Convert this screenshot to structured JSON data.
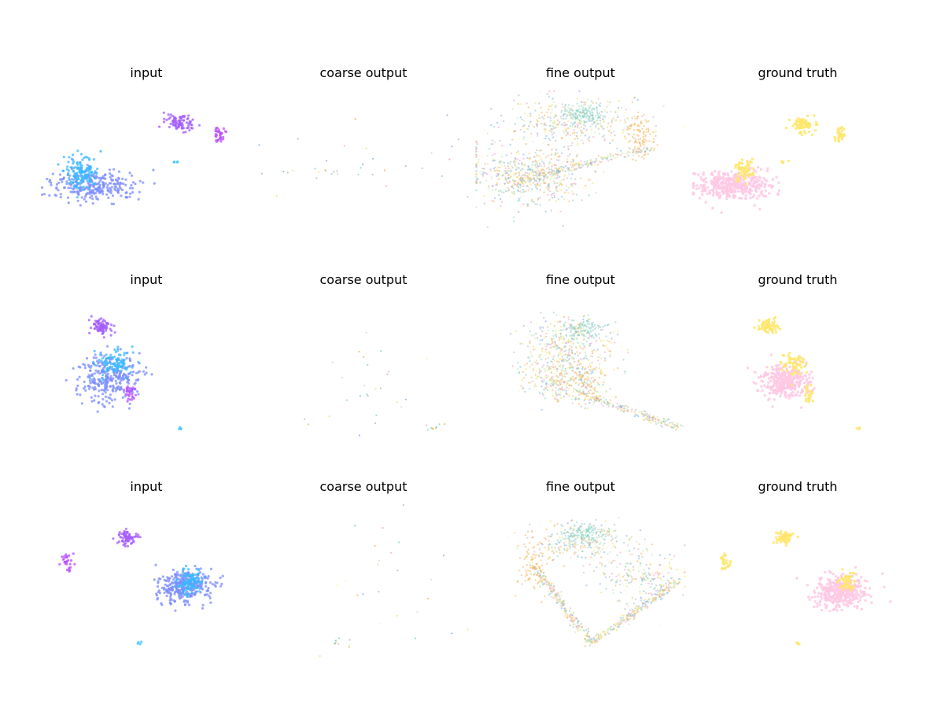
{
  "palette": {
    "input": [
      "#3bb8ff",
      "#7b8cff",
      "#a35cff",
      "#b84dff",
      "#35c6ff"
    ],
    "ground_truth": [
      "#ffc8e4",
      "#ffe66d"
    ],
    "output": [
      "#8ad4c4",
      "#c6e6b8",
      "#f4b65a",
      "#f7e06a",
      "#b9b9b9",
      "#f6f6b6",
      "#7fb2e4",
      "#f5a6c8"
    ]
  },
  "chart_data": [
    {
      "type": "scatter",
      "title": "input",
      "row": 1,
      "clusters": [
        {
          "name": "body",
          "kind": "blob",
          "x": 0.26,
          "y": 0.62,
          "sx": 0.1,
          "sy": 0.05,
          "n": 280,
          "color": 1
        },
        {
          "name": "leg",
          "kind": "blob",
          "x": 0.2,
          "y": 0.53,
          "sx": 0.04,
          "sy": 0.05,
          "n": 140,
          "color": 0
        },
        {
          "name": "head",
          "kind": "blob",
          "x": 0.66,
          "y": 0.22,
          "sx": 0.035,
          "sy": 0.025,
          "n": 90,
          "color": 2
        },
        {
          "name": "rod",
          "kind": "line",
          "x": 0.84,
          "y": 0.25,
          "x2": 0.83,
          "y2": 0.33,
          "n": 35,
          "color": 3
        },
        {
          "name": "dot",
          "kind": "blob",
          "x": 0.64,
          "y": 0.47,
          "sx": 0.01,
          "sy": 0.005,
          "n": 4,
          "color": 4
        }
      ]
    },
    {
      "type": "scatter",
      "title": "coarse output",
      "row": 1,
      "clusters": [
        {
          "name": "sparse",
          "kind": "blob",
          "x": 0.45,
          "y": 0.47,
          "sx": 0.22,
          "sy": 0.15,
          "n": 26,
          "color": "mix"
        },
        {
          "name": "tail",
          "kind": "line",
          "x": 0.05,
          "y": 0.52,
          "x2": 0.38,
          "y2": 0.55,
          "n": 10,
          "color": "mix"
        }
      ]
    },
    {
      "type": "scatter",
      "title": "fine output",
      "row": 1,
      "clusters": [
        {
          "name": "base",
          "kind": "blob",
          "x": 0.25,
          "y": 0.55,
          "sx": 0.14,
          "sy": 0.1,
          "n": 600,
          "color": "mix"
        },
        {
          "name": "arm",
          "kind": "line",
          "x": 0.18,
          "y": 0.6,
          "x2": 0.82,
          "y2": 0.38,
          "n": 230,
          "color": "mix"
        },
        {
          "name": "loop",
          "kind": "blob",
          "x": 0.47,
          "y": 0.22,
          "sx": 0.15,
          "sy": 0.08,
          "n": 340,
          "color": "mix"
        },
        {
          "name": "teal",
          "kind": "blob",
          "x": 0.52,
          "y": 0.17,
          "sx": 0.05,
          "sy": 0.035,
          "n": 140,
          "color": 0
        },
        {
          "name": "orange",
          "kind": "blob",
          "x": 0.78,
          "y": 0.3,
          "sx": 0.03,
          "sy": 0.07,
          "n": 100,
          "color": 2
        }
      ]
    },
    {
      "type": "scatter",
      "title": "ground truth",
      "row": 1,
      "clusters": [
        {
          "name": "body",
          "kind": "blob",
          "x": 0.2,
          "y": 0.62,
          "sx": 0.09,
          "sy": 0.045,
          "n": 380,
          "color": 0
        },
        {
          "name": "leg",
          "kind": "blob",
          "x": 0.25,
          "y": 0.53,
          "sx": 0.02,
          "sy": 0.035,
          "n": 60,
          "color": 1
        },
        {
          "name": "head",
          "kind": "blob",
          "x": 0.53,
          "y": 0.23,
          "sx": 0.03,
          "sy": 0.025,
          "n": 80,
          "color": 1
        },
        {
          "name": "rod",
          "kind": "line",
          "x": 0.7,
          "y": 0.25,
          "x2": 0.69,
          "y2": 0.33,
          "n": 30,
          "color": 1
        },
        {
          "name": "dot",
          "kind": "blob",
          "x": 0.43,
          "y": 0.47,
          "sx": 0.01,
          "sy": 0.005,
          "n": 4,
          "color": 1
        }
      ]
    },
    {
      "type": "scatter",
      "title": "input",
      "row": 2,
      "clusters": [
        {
          "name": "body",
          "kind": "blob",
          "x": 0.33,
          "y": 0.53,
          "sx": 0.07,
          "sy": 0.07,
          "n": 300,
          "color": 1
        },
        {
          "name": "leg",
          "kind": "blob",
          "x": 0.35,
          "y": 0.43,
          "sx": 0.04,
          "sy": 0.04,
          "n": 100,
          "color": 0
        },
        {
          "name": "head",
          "kind": "blob",
          "x": 0.29,
          "y": 0.2,
          "sx": 0.025,
          "sy": 0.025,
          "n": 80,
          "color": 2
        },
        {
          "name": "rod",
          "kind": "line",
          "x": 0.42,
          "y": 0.58,
          "x2": 0.42,
          "y2": 0.67,
          "n": 28,
          "color": 3
        },
        {
          "name": "dot",
          "kind": "blob",
          "x": 0.65,
          "y": 0.85,
          "sx": 0.008,
          "sy": 0.004,
          "n": 4,
          "color": 4
        }
      ]
    },
    {
      "type": "scatter",
      "title": "coarse output",
      "row": 2,
      "clusters": [
        {
          "name": "sparse",
          "kind": "blob",
          "x": 0.5,
          "y": 0.55,
          "sx": 0.12,
          "sy": 0.2,
          "n": 26,
          "color": "mix"
        },
        {
          "name": "tail",
          "kind": "blob",
          "x": 0.82,
          "y": 0.84,
          "sx": 0.03,
          "sy": 0.015,
          "n": 10,
          "color": "mix"
        }
      ]
    },
    {
      "type": "scatter",
      "title": "fine output",
      "row": 2,
      "clusters": [
        {
          "name": "green",
          "kind": "blob",
          "x": 0.45,
          "y": 0.3,
          "sx": 0.1,
          "sy": 0.08,
          "n": 320,
          "color": "mix"
        },
        {
          "name": "mid",
          "kind": "blob",
          "x": 0.42,
          "y": 0.52,
          "sx": 0.1,
          "sy": 0.08,
          "n": 380,
          "color": "mix"
        },
        {
          "name": "teal",
          "kind": "blob",
          "x": 0.5,
          "y": 0.22,
          "sx": 0.05,
          "sy": 0.035,
          "n": 100,
          "color": 0
        },
        {
          "name": "tail",
          "kind": "line",
          "x": 0.48,
          "y": 0.62,
          "x2": 0.95,
          "y2": 0.84,
          "n": 220,
          "color": "mix"
        },
        {
          "name": "orange",
          "kind": "blob",
          "x": 0.52,
          "y": 0.55,
          "sx": 0.06,
          "sy": 0.07,
          "n": 70,
          "color": 2
        }
      ]
    },
    {
      "type": "scatter",
      "title": "ground truth",
      "row": 2,
      "clusters": [
        {
          "name": "body",
          "kind": "blob",
          "x": 0.44,
          "y": 0.55,
          "sx": 0.055,
          "sy": 0.05,
          "n": 320,
          "color": 0
        },
        {
          "name": "leg",
          "kind": "blob",
          "x": 0.49,
          "y": 0.44,
          "sx": 0.03,
          "sy": 0.035,
          "n": 60,
          "color": 1
        },
        {
          "name": "head",
          "kind": "blob",
          "x": 0.36,
          "y": 0.2,
          "sx": 0.025,
          "sy": 0.025,
          "n": 70,
          "color": 1
        },
        {
          "name": "rod",
          "kind": "line",
          "x": 0.55,
          "y": 0.58,
          "x2": 0.55,
          "y2": 0.67,
          "n": 26,
          "color": 1
        },
        {
          "name": "dot",
          "kind": "blob",
          "x": 0.78,
          "y": 0.85,
          "sx": 0.01,
          "sy": 0.004,
          "n": 4,
          "color": 1
        }
      ]
    },
    {
      "type": "scatter",
      "title": "input",
      "row": 3,
      "clusters": [
        {
          "name": "body",
          "kind": "blob",
          "x": 0.68,
          "y": 0.54,
          "sx": 0.06,
          "sy": 0.05,
          "n": 320,
          "color": 1
        },
        {
          "name": "leg",
          "kind": "blob",
          "x": 0.7,
          "y": 0.5,
          "sx": 0.03,
          "sy": 0.04,
          "n": 100,
          "color": 0
        },
        {
          "name": "head",
          "kind": "blob",
          "x": 0.41,
          "y": 0.23,
          "sx": 0.022,
          "sy": 0.02,
          "n": 70,
          "color": 2
        },
        {
          "name": "rod",
          "kind": "line",
          "x": 0.13,
          "y": 0.33,
          "x2": 0.14,
          "y2": 0.44,
          "n": 28,
          "color": 3
        },
        {
          "name": "dot",
          "kind": "blob",
          "x": 0.46,
          "y": 0.9,
          "sx": 0.008,
          "sy": 0.004,
          "n": 4,
          "color": 4
        }
      ]
    },
    {
      "type": "scatter",
      "title": "coarse output",
      "row": 3,
      "clusters": [
        {
          "name": "sparse",
          "kind": "blob",
          "x": 0.58,
          "y": 0.5,
          "sx": 0.22,
          "sy": 0.2,
          "n": 24,
          "color": "mix"
        },
        {
          "name": "tail",
          "kind": "blob",
          "x": 0.4,
          "y": 0.9,
          "sx": 0.03,
          "sy": 0.015,
          "n": 10,
          "color": "mix"
        }
      ]
    },
    {
      "type": "scatter",
      "title": "fine output",
      "row": 3,
      "clusters": [
        {
          "name": "top",
          "kind": "blob",
          "x": 0.5,
          "y": 0.25,
          "sx": 0.12,
          "sy": 0.06,
          "n": 260,
          "color": "mix"
        },
        {
          "name": "teal",
          "kind": "blob",
          "x": 0.52,
          "y": 0.2,
          "sx": 0.05,
          "sy": 0.03,
          "n": 120,
          "color": 0
        },
        {
          "name": "left-arm",
          "kind": "line",
          "x": 0.28,
          "y": 0.4,
          "x2": 0.55,
          "y2": 0.9,
          "n": 260,
          "color": "mix"
        },
        {
          "name": "right-arm",
          "kind": "line",
          "x": 0.55,
          "y": 0.9,
          "x2": 0.95,
          "y2": 0.5,
          "n": 260,
          "color": "mix"
        },
        {
          "name": "orange",
          "kind": "blob",
          "x": 0.28,
          "y": 0.4,
          "sx": 0.04,
          "sy": 0.08,
          "n": 90,
          "color": 2
        },
        {
          "name": "right",
          "kind": "blob",
          "x": 0.78,
          "y": 0.48,
          "sx": 0.1,
          "sy": 0.08,
          "n": 220,
          "color": "mix"
        }
      ]
    },
    {
      "type": "scatter",
      "title": "ground truth",
      "row": 3,
      "clusters": [
        {
          "name": "body",
          "kind": "blob",
          "x": 0.7,
          "y": 0.57,
          "sx": 0.06,
          "sy": 0.05,
          "n": 360,
          "color": 0
        },
        {
          "name": "leg",
          "kind": "blob",
          "x": 0.73,
          "y": 0.5,
          "sx": 0.02,
          "sy": 0.03,
          "n": 50,
          "color": 1
        },
        {
          "name": "head",
          "kind": "blob",
          "x": 0.44,
          "y": 0.23,
          "sx": 0.022,
          "sy": 0.02,
          "n": 60,
          "color": 1
        },
        {
          "name": "rod",
          "kind": "line",
          "x": 0.16,
          "y": 0.33,
          "x2": 0.17,
          "y2": 0.44,
          "n": 26,
          "color": 1
        },
        {
          "name": "dot",
          "kind": "blob",
          "x": 0.5,
          "y": 0.9,
          "sx": 0.01,
          "sy": 0.004,
          "n": 4,
          "color": 1
        }
      ]
    }
  ]
}
